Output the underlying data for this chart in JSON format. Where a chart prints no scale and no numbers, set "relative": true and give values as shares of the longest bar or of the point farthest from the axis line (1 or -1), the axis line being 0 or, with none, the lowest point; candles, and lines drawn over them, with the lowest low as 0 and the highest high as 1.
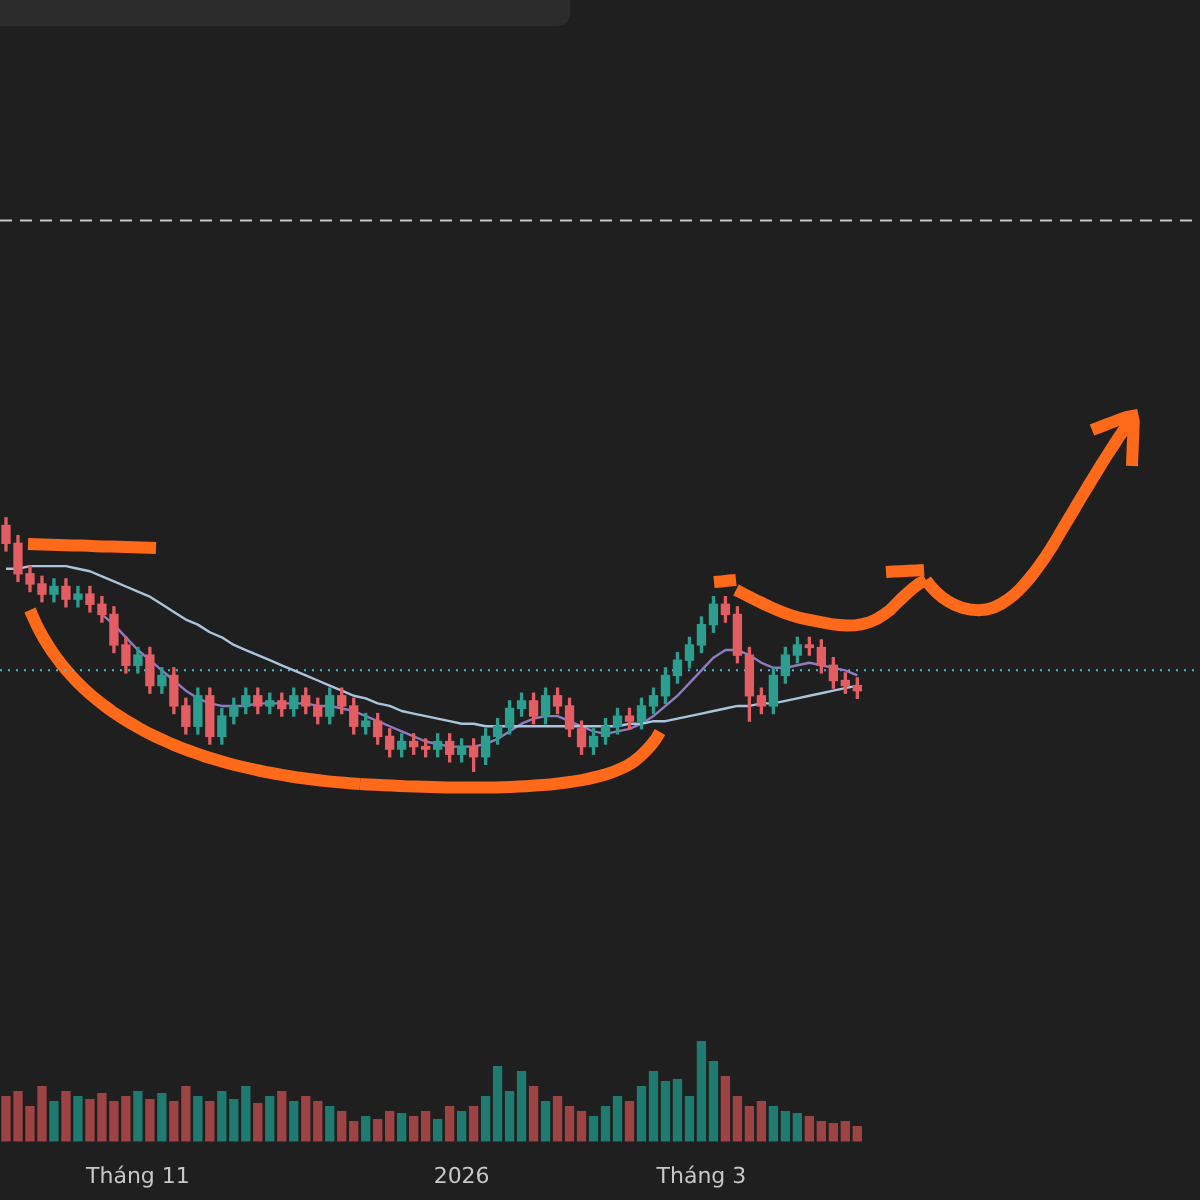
{
  "chart_data": [
    {
      "type": "candlestick",
      "relative": true,
      "tick_labels": false,
      "categories": [
        null,
        null,
        null,
        null,
        null,
        null,
        null,
        null,
        null,
        null,
        null,
        null,
        null,
        null,
        null,
        null,
        null,
        null,
        null,
        null,
        null,
        null,
        null,
        null,
        null,
        null,
        null,
        null,
        null,
        null,
        null,
        null,
        null,
        null,
        null,
        null,
        null,
        null,
        null,
        null,
        null,
        null,
        null,
        null,
        null,
        null,
        null,
        null,
        null,
        null,
        null,
        null,
        null,
        null,
        null,
        null,
        null,
        null,
        null,
        null,
        null,
        null,
        null,
        null,
        null,
        null,
        null,
        null,
        null,
        null,
        null,
        null
      ],
      "ohlc": [
        [
          0.97,
          1,
          0.87,
          0.9
        ],
        [
          0.9,
          0.93,
          0.75,
          0.78
        ],
        [
          0.78,
          0.81,
          0.71,
          0.74
        ],
        [
          0.74,
          0.77,
          0.67,
          0.7
        ],
        [
          0.7,
          0.76,
          0.67,
          0.73
        ],
        [
          0.73,
          0.76,
          0.65,
          0.68
        ],
        [
          0.68,
          0.73,
          0.65,
          0.7
        ],
        [
          0.7,
          0.73,
          0.63,
          0.66
        ],
        [
          0.66,
          0.69,
          0.59,
          0.62
        ],
        [
          0.62,
          0.65,
          0.47,
          0.5
        ],
        [
          0.5,
          0.53,
          0.39,
          0.42
        ],
        [
          0.42,
          0.49,
          0.39,
          0.46
        ],
        [
          0.46,
          0.49,
          0.31,
          0.34
        ],
        [
          0.34,
          0.41,
          0.31,
          0.38
        ],
        [
          0.38,
          0.41,
          0.23,
          0.26
        ],
        [
          0.26,
          0.29,
          0.15,
          0.18
        ],
        [
          0.18,
          0.33,
          0.15,
          0.3
        ],
        [
          0.3,
          0.33,
          0.11,
          0.14
        ],
        [
          0.14,
          0.25,
          0.11,
          0.22
        ],
        [
          0.22,
          0.29,
          0.19,
          0.26
        ],
        [
          0.26,
          0.33,
          0.23,
          0.3
        ],
        [
          0.3,
          0.33,
          0.23,
          0.26
        ],
        [
          0.26,
          0.31,
          0.23,
          0.28
        ],
        [
          0.28,
          0.31,
          0.22,
          0.25
        ],
        [
          0.25,
          0.33,
          0.22,
          0.3
        ],
        [
          0.3,
          0.33,
          0.23,
          0.26
        ],
        [
          0.26,
          0.29,
          0.19,
          0.22
        ],
        [
          0.22,
          0.33,
          0.19,
          0.3
        ],
        [
          0.3,
          0.33,
          0.23,
          0.26
        ],
        [
          0.26,
          0.29,
          0.15,
          0.18
        ],
        [
          0.18,
          0.23,
          0.15,
          0.2
        ],
        [
          0.2,
          0.23,
          0.11,
          0.14
        ],
        [
          0.14,
          0.17,
          0.06,
          0.09
        ],
        [
          0.09,
          0.15,
          0.06,
          0.12
        ],
        [
          0.12,
          0.15,
          0.07,
          0.1
        ],
        [
          0.1,
          0.13,
          0.06,
          0.09
        ],
        [
          0.09,
          0.15,
          0.06,
          0.12
        ],
        [
          0.12,
          0.15,
          0.04,
          0.07
        ],
        [
          0.07,
          0.13,
          0.04,
          0.1
        ],
        [
          0.1,
          0.13,
          0,
          0.06
        ],
        [
          0.06,
          0.17,
          0.03,
          0.14
        ],
        [
          0.14,
          0.21,
          0.11,
          0.18
        ],
        [
          0.18,
          0.28,
          0.15,
          0.25
        ],
        [
          0.25,
          0.31,
          0.22,
          0.28
        ],
        [
          0.28,
          0.31,
          0.19,
          0.22
        ],
        [
          0.22,
          0.33,
          0.19,
          0.3
        ],
        [
          0.3,
          0.33,
          0.23,
          0.26
        ],
        [
          0.26,
          0.29,
          0.14,
          0.17
        ],
        [
          0.17,
          0.2,
          0.07,
          0.1
        ],
        [
          0.1,
          0.17,
          0.07,
          0.14
        ],
        [
          0.14,
          0.21,
          0.11,
          0.18
        ],
        [
          0.18,
          0.25,
          0.15,
          0.22
        ],
        [
          0.22,
          0.25,
          0.17,
          0.2
        ],
        [
          0.2,
          0.29,
          0.17,
          0.26
        ],
        [
          0.26,
          0.33,
          0.23,
          0.3
        ],
        [
          0.3,
          0.41,
          0.27,
          0.38
        ],
        [
          0.38,
          0.47,
          0.35,
          0.44
        ],
        [
          0.44,
          0.53,
          0.41,
          0.5
        ],
        [
          0.5,
          0.61,
          0.47,
          0.58
        ],
        [
          0.58,
          0.69,
          0.55,
          0.66
        ],
        [
          0.66,
          0.69,
          0.59,
          0.62
        ],
        [
          0.62,
          0.65,
          0.43,
          0.46
        ],
        [
          0.46,
          0.49,
          0.2,
          0.3
        ],
        [
          0.3,
          0.33,
          0.23,
          0.26
        ],
        [
          0.26,
          0.41,
          0.23,
          0.38
        ],
        [
          0.38,
          0.49,
          0.35,
          0.46
        ],
        [
          0.46,
          0.53,
          0.43,
          0.5
        ],
        [
          0.5,
          0.53,
          0.46,
          0.49
        ],
        [
          0.49,
          0.52,
          0.39,
          0.42
        ],
        [
          0.42,
          0.45,
          0.33,
          0.36
        ],
        [
          0.36,
          0.39,
          0.31,
          0.34
        ],
        [
          0.34,
          0.37,
          0.29,
          0.32
        ]
      ],
      "colors": [
        "#e35d62",
        "#e35d62",
        "#e35d62",
        "#e35d62",
        "#2b9e8f",
        "#e35d62",
        "#2b9e8f",
        "#e35d62",
        "#e35d62",
        "#e35d62",
        "#e35d62",
        "#2b9e8f",
        "#e35d62",
        "#2b9e8f",
        "#e35d62",
        "#e35d62",
        "#2b9e8f",
        "#e35d62",
        "#2b9e8f",
        "#2b9e8f",
        "#2b9e8f",
        "#e35d62",
        "#2b9e8f",
        "#e35d62",
        "#2b9e8f",
        "#e35d62",
        "#e35d62",
        "#2b9e8f",
        "#e35d62",
        "#e35d62",
        "#2b9e8f",
        "#e35d62",
        "#e35d62",
        "#2b9e8f",
        "#e35d62",
        "#e35d62",
        "#2b9e8f",
        "#e35d62",
        "#2b9e8f",
        "#e35d62",
        "#2b9e8f",
        "#2b9e8f",
        "#2b9e8f",
        "#2b9e8f",
        "#e35d62",
        "#2b9e8f",
        "#e35d62",
        "#e35d62",
        "#e35d62",
        "#2b9e8f",
        "#2b9e8f",
        "#2b9e8f",
        "#e35d62",
        "#2b9e8f",
        "#2b9e8f",
        "#2b9e8f",
        "#2b9e8f",
        "#2b9e8f",
        "#2b9e8f",
        "#2b9e8f",
        "#e35d62",
        "#e35d62",
        "#e35d62",
        "#e35d62",
        "#2b9e8f",
        "#2b9e8f",
        "#2b9e8f",
        "#e35d62",
        "#e35d62",
        "#e35d62",
        "#e35d62",
        "#e35d62"
      ],
      "series": [
        {
          "type": "line",
          "color": "#a9c4dc",
          "values": [
            0.8,
            0.8,
            0.81,
            0.81,
            0.81,
            0.81,
            0.8,
            0.79,
            0.77,
            0.75,
            0.73,
            0.71,
            0.69,
            0.66,
            0.63,
            0.6,
            0.58,
            0.55,
            0.53,
            0.5,
            0.48,
            0.46,
            0.44,
            0.42,
            0.4,
            0.38,
            0.36,
            0.34,
            0.32,
            0.3,
            0.29,
            0.27,
            0.26,
            0.24,
            0.23,
            0.22,
            0.21,
            0.2,
            0.19,
            0.19,
            0.18,
            0.18,
            0.18,
            0.18,
            0.18,
            0.18,
            0.18,
            0.18,
            0.18,
            0.18,
            0.18,
            0.18,
            0.19,
            0.19,
            0.2,
            0.2,
            0.21,
            0.22,
            0.23,
            0.24,
            0.25,
            0.26,
            0.26,
            0.27,
            0.27,
            0.28,
            0.29,
            0.3,
            0.31,
            0.32,
            0.33,
            0.34
          ]
        },
        {
          "type": "line",
          "color": "#8e7cc3",
          "values": [
            null,
            null,
            null,
            null,
            null,
            null,
            null,
            null,
            0.62,
            0.58,
            0.53,
            0.48,
            0.44,
            0.4,
            0.36,
            0.32,
            0.29,
            0.27,
            0.26,
            0.26,
            0.26,
            0.27,
            0.27,
            0.27,
            0.27,
            0.27,
            0.26,
            0.26,
            0.25,
            0.24,
            0.22,
            0.2,
            0.18,
            0.16,
            0.14,
            0.12,
            0.11,
            0.1,
            0.1,
            0.1,
            0.11,
            0.13,
            0.16,
            0.19,
            0.21,
            0.22,
            0.22,
            0.2,
            0.18,
            0.16,
            0.15,
            0.16,
            0.17,
            0.19,
            0.22,
            0.26,
            0.3,
            0.35,
            0.4,
            0.45,
            0.48,
            0.48,
            0.46,
            0.43,
            0.41,
            0.41,
            0.42,
            0.43,
            0.42,
            0.41,
            0.4,
            0.38
          ]
        }
      ],
      "ref_lines": [
        {
          "axis": "y",
          "value": 2.17,
          "color": "#c8c8c8",
          "line_style": "dashed"
        },
        {
          "axis": "y",
          "value": 0.4,
          "color": "#4fb8c9",
          "line_style": "dotted"
        }
      ]
    },
    {
      "type": "bar",
      "relative": true,
      "categories": [
        null,
        null,
        null,
        null,
        null,
        null,
        null,
        null,
        null,
        null,
        null,
        "Tháng 11",
        null,
        null,
        null,
        null,
        null,
        null,
        null,
        null,
        null,
        null,
        null,
        null,
        null,
        null,
        null,
        null,
        null,
        null,
        null,
        null,
        null,
        null,
        null,
        null,
        null,
        null,
        "2026",
        null,
        null,
        null,
        null,
        null,
        null,
        null,
        null,
        null,
        null,
        null,
        null,
        null,
        null,
        null,
        null,
        null,
        null,
        null,
        "Tháng 3",
        null,
        null,
        null,
        null,
        null,
        null,
        null,
        null,
        null,
        null,
        null,
        null,
        null
      ],
      "values": [
        0.45,
        0.5,
        0.35,
        0.55,
        0.4,
        0.5,
        0.45,
        0.42,
        0.48,
        0.4,
        0.45,
        0.5,
        0.42,
        0.48,
        0.4,
        0.55,
        0.45,
        0.4,
        0.5,
        0.42,
        0.55,
        0.38,
        0.45,
        0.5,
        0.4,
        0.45,
        0.4,
        0.35,
        0.3,
        0.2,
        0.25,
        0.22,
        0.3,
        0.28,
        0.25,
        0.3,
        0.22,
        0.35,
        0.3,
        0.35,
        0.45,
        0.75,
        0.5,
        0.7,
        0.55,
        0.4,
        0.45,
        0.35,
        0.3,
        0.25,
        0.35,
        0.45,
        0.4,
        0.55,
        0.7,
        0.6,
        0.62,
        0.45,
        1,
        0.8,
        0.65,
        0.45,
        0.35,
        0.4,
        0.35,
        0.3,
        0.28,
        0.25,
        0.2,
        0.18,
        0.2,
        0.15
      ],
      "colors": [
        "#9e4344",
        "#9e4344",
        "#9e4344",
        "#9e4344",
        "#1f7a70",
        "#9e4344",
        "#1f7a70",
        "#9e4344",
        "#9e4344",
        "#9e4344",
        "#9e4344",
        "#1f7a70",
        "#9e4344",
        "#1f7a70",
        "#9e4344",
        "#9e4344",
        "#1f7a70",
        "#9e4344",
        "#1f7a70",
        "#1f7a70",
        "#1f7a70",
        "#9e4344",
        "#1f7a70",
        "#9e4344",
        "#1f7a70",
        "#9e4344",
        "#9e4344",
        "#1f7a70",
        "#9e4344",
        "#9e4344",
        "#1f7a70",
        "#9e4344",
        "#9e4344",
        "#1f7a70",
        "#9e4344",
        "#9e4344",
        "#1f7a70",
        "#9e4344",
        "#1f7a70",
        "#9e4344",
        "#1f7a70",
        "#1f7a70",
        "#1f7a70",
        "#1f7a70",
        "#9e4344",
        "#1f7a70",
        "#9e4344",
        "#9e4344",
        "#9e4344",
        "#1f7a70",
        "#1f7a70",
        "#1f7a70",
        "#9e4344",
        "#1f7a70",
        "#1f7a70",
        "#1f7a70",
        "#1f7a70",
        "#1f7a70",
        "#1f7a70",
        "#1f7a70",
        "#9e4344",
        "#9e4344",
        "#9e4344",
        "#9e4344",
        "#1f7a70",
        "#1f7a70",
        "#1f7a70",
        "#9e4344",
        "#9e4344",
        "#9e4344",
        "#9e4344",
        "#9e4344"
      ]
    }
  ]
}
